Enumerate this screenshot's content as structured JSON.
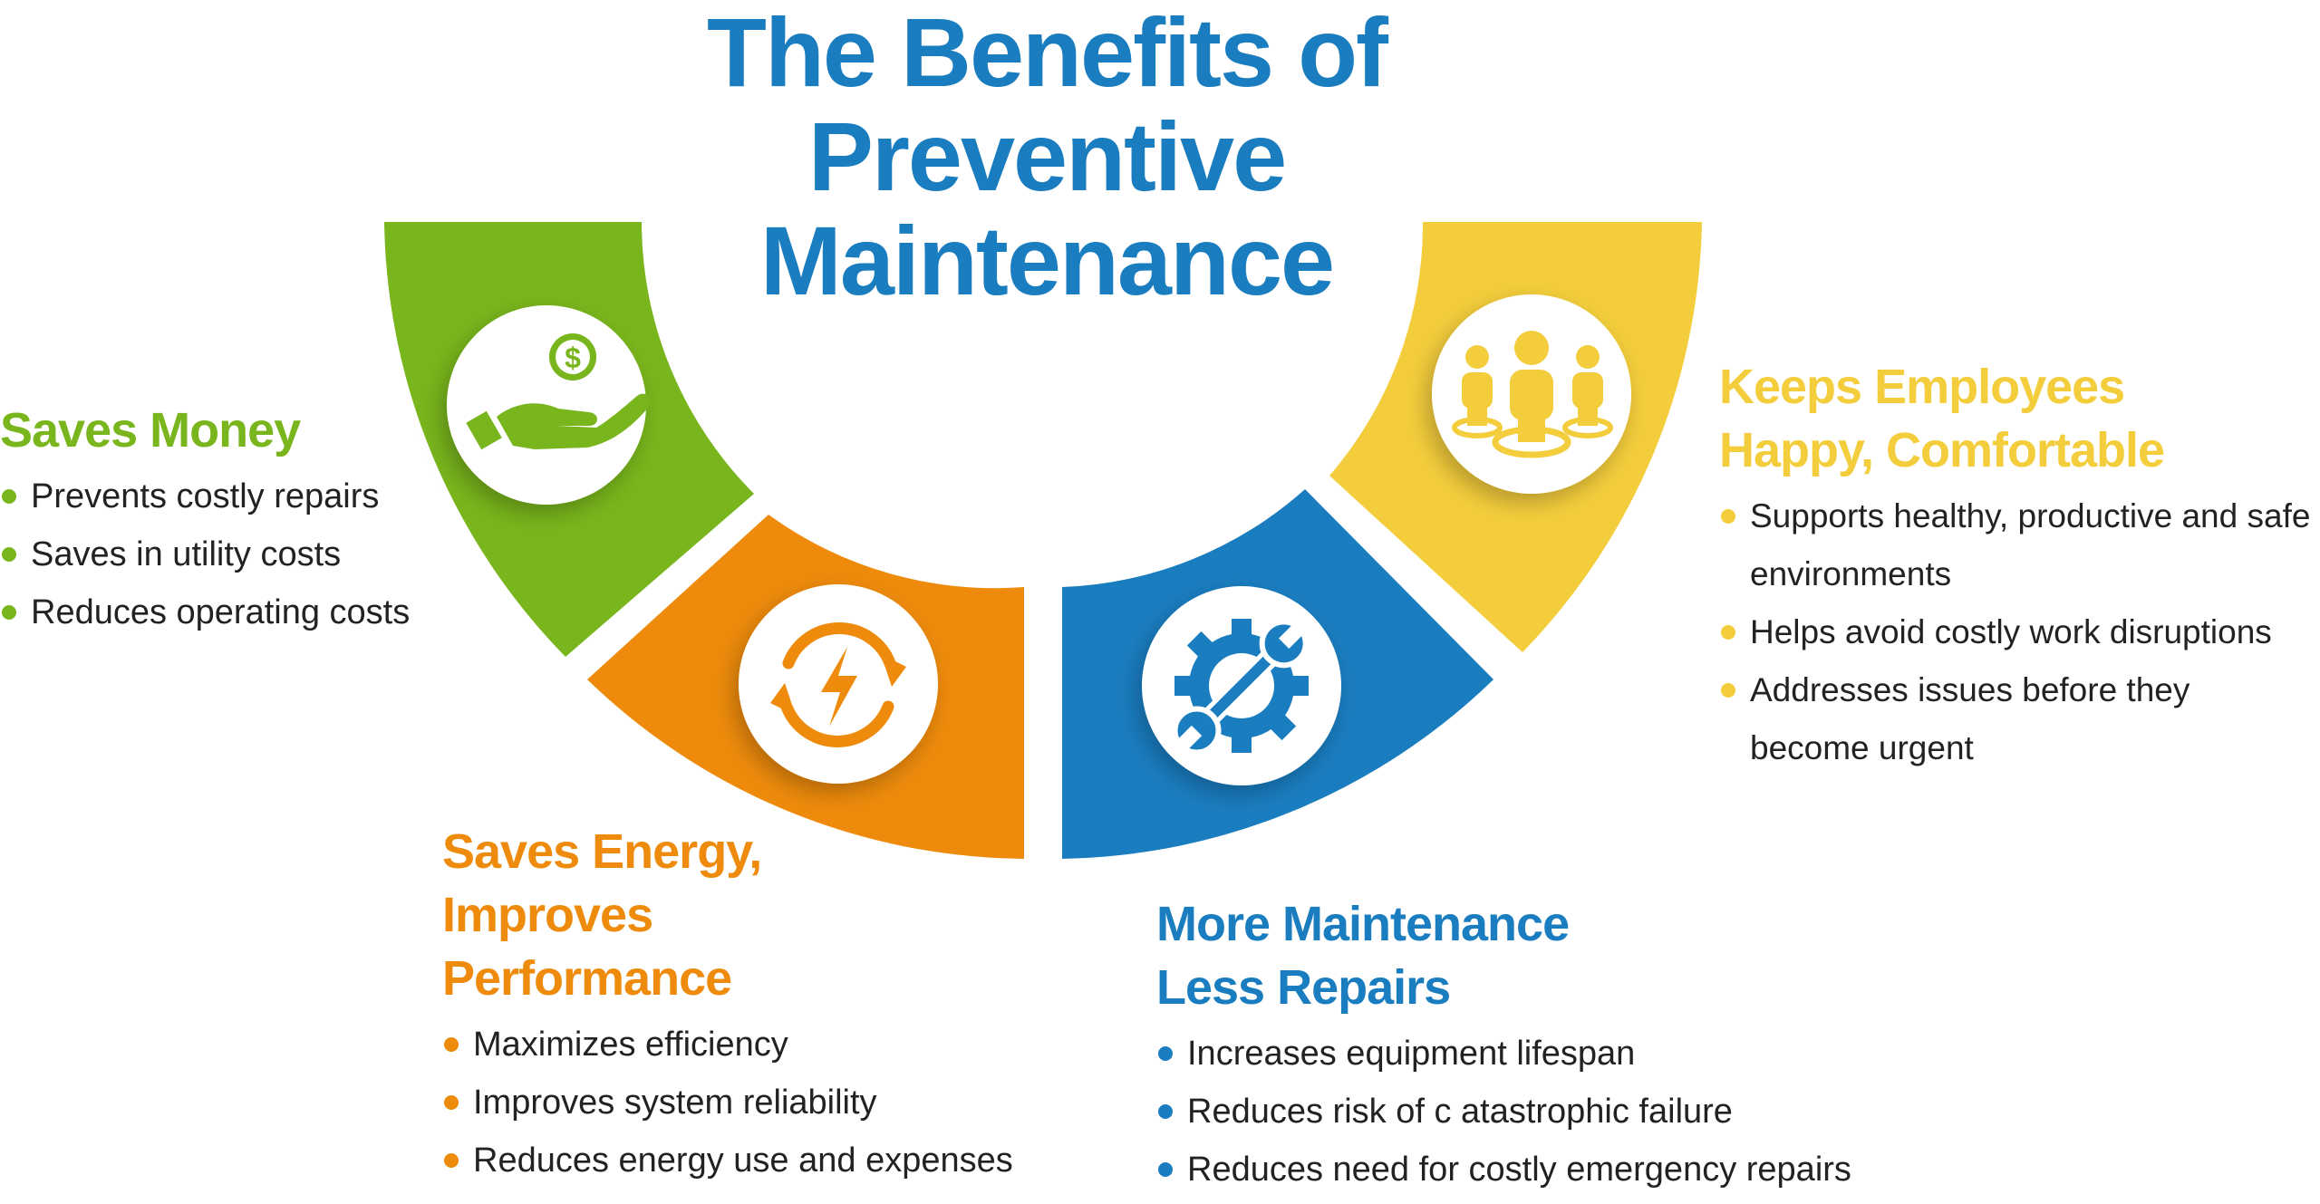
{
  "title": {
    "line1": "The Benefits of",
    "line2": "Preventive",
    "line3": "Maintenance"
  },
  "colors": {
    "title": "#1a7dc0",
    "green": "#79b51c",
    "orange": "#ee8b0c",
    "blue": "#1a7dc0",
    "yellow": "#f3cd3c"
  },
  "segments": [
    {
      "color": "green",
      "icon": "hand-money-icon"
    },
    {
      "color": "orange",
      "icon": "energy-cycle-icon"
    },
    {
      "color": "blue",
      "icon": "gear-wrench-icon"
    },
    {
      "color": "yellow",
      "icon": "people-group-icon"
    }
  ],
  "saves_money": {
    "heading": "Saves Money",
    "bullets": [
      "Prevents costly repairs",
      "Saves in utility costs",
      "Reduces operating costs"
    ]
  },
  "saves_energy": {
    "heading_line1": "Saves Energy,",
    "heading_line2": "Improves",
    "heading_line3": "Performance",
    "bullets": [
      "Maximizes efficiency",
      "Improves system reliability",
      "Reduces energy use and expenses"
    ]
  },
  "more_maintenance": {
    "heading_line1": "More Maintenance",
    "heading_line2": "Less Repairs",
    "bullets": [
      "Increases equipment lifespan",
      "Reduces risk of c atastrophic failure",
      "Reduces need for costly emergency repairs"
    ]
  },
  "keeps_employees": {
    "heading_line1": "Keeps Employees",
    "heading_line2": "Happy, Comfortable",
    "bullets": [
      "Supports healthy, productive and safe",
      "environments",
      "Helps avoid costly work disruptions",
      "Addresses issues before they",
      "become urgent"
    ]
  }
}
